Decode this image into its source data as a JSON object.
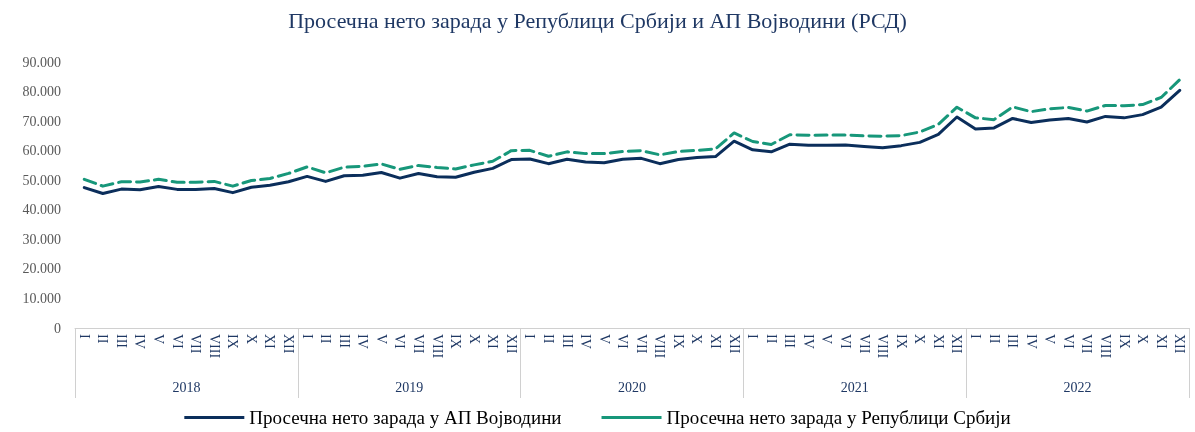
{
  "chart_data": {
    "type": "line",
    "title": "Просечна нето зарада у Републици Србији и АП Војводини (РСД)",
    "categories": [
      "I",
      "II",
      "III",
      "IV",
      "V",
      "VI",
      "VII",
      "VIII",
      "IX",
      "X",
      "XI",
      "XII",
      "I",
      "II",
      "III",
      "IV",
      "V",
      "VI",
      "VII",
      "VIII",
      "IX",
      "X",
      "XI",
      "XII",
      "I",
      "II",
      "III",
      "IV",
      "V",
      "VI",
      "VII",
      "VIII",
      "IX",
      "X",
      "XI",
      "XII",
      "I",
      "II",
      "III",
      "IV",
      "V",
      "VI",
      "VII",
      "VIII",
      "IX",
      "X",
      "XI",
      "XII",
      "I",
      "II",
      "III",
      "IV",
      "V",
      "VI",
      "VII",
      "VIII",
      "IX",
      "X",
      "XI",
      "XII"
    ],
    "annotations": [
      "2018",
      "2019",
      "2020",
      "2021",
      "2022"
    ],
    "series": [
      {
        "name": "Просечна нето зарада у АП Војводини",
        "color": "#0b2e5b",
        "line_style": "solid",
        "values": [
          47500,
          45500,
          47000,
          46800,
          47900,
          46900,
          46900,
          47200,
          45800,
          47600,
          48300,
          49500,
          51300,
          49600,
          51500,
          51700,
          52600,
          50700,
          52300,
          51200,
          51000,
          52700,
          54000,
          57000,
          57200,
          55600,
          57100,
          56200,
          55900,
          57100,
          57400,
          55600,
          57000,
          57700,
          58000,
          63200,
          60300,
          59600,
          62200,
          61800,
          61800,
          61900,
          61400,
          61000,
          61700,
          62800,
          65500,
          71400,
          67300,
          67700,
          70900,
          69500,
          70400,
          70900,
          69700,
          71600,
          71100,
          72200,
          74700,
          80400
        ]
      },
      {
        "name": "Просечна нето зарада у Републици Србији",
        "color": "#17977a",
        "line_style": "dashed",
        "values": [
          50300,
          48000,
          49500,
          49400,
          50300,
          49300,
          49300,
          49600,
          48000,
          49900,
          50600,
          52300,
          54500,
          52500,
          54400,
          54700,
          55500,
          53700,
          55000,
          54300,
          53800,
          55200,
          56400,
          60000,
          60100,
          58100,
          59600,
          59000,
          59000,
          59700,
          60000,
          58600,
          59700,
          60100,
          60600,
          66000,
          63100,
          62100,
          65400,
          65200,
          65300,
          65300,
          65000,
          64900,
          65100,
          66300,
          68900,
          74700,
          71100,
          70500,
          74800,
          73200,
          74200,
          74600,
          73400,
          75300,
          75200,
          75600,
          78000,
          84000
        ]
      }
    ],
    "ylim": [
      0,
      90000
    ],
    "yticks": [
      {
        "value": 0,
        "label": "0"
      },
      {
        "value": 10000,
        "label": "10.000"
      },
      {
        "value": 20000,
        "label": "20.000"
      },
      {
        "value": 30000,
        "label": "30.000"
      },
      {
        "value": 40000,
        "label": "40.000"
      },
      {
        "value": 50000,
        "label": "50.000"
      },
      {
        "value": 60000,
        "label": "60.000"
      },
      {
        "value": 70000,
        "label": "70.000"
      },
      {
        "value": 80000,
        "label": "80.000"
      },
      {
        "value": 90000,
        "label": "90.000"
      }
    ],
    "grid": false,
    "legend": "bottom",
    "marker": "none"
  }
}
